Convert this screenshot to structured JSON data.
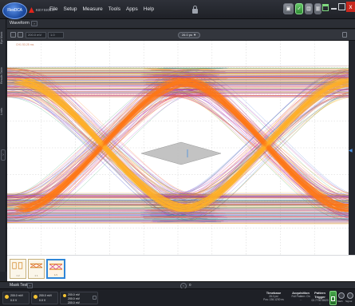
{
  "app": {
    "logo_label": "FlexDCA",
    "brand": "KEYSIGHT",
    "menus": [
      "File",
      "Setup",
      "Measure",
      "Tools",
      "Apps",
      "Help"
    ],
    "toolbar_glyphs": [
      "▣",
      "✓",
      "▤",
      "▥"
    ],
    "close_glyph": "x"
  },
  "left_dock": {
    "tabs": [
      "Eye Mask",
      "Results Table",
      "Limits"
    ],
    "arrow": "›"
  },
  "waveform": {
    "title": "Waveform",
    "menu_glyph": "›",
    "scale_boxes": [
      "200.0 mV",
      "1.0"
    ],
    "center_label": "26.0 ps ▼",
    "plot_label": "CH1  53.25 ms"
  },
  "thumbnails": [
    {
      "caption": "1  2",
      "selected": false
    },
    {
      "caption": "1  1",
      "selected": false
    },
    {
      "caption": "1/1",
      "selected": true
    }
  ],
  "mask_test": {
    "title": "Mask Test",
    "arrow": "›",
    "nav_glyph": "‹",
    "nav_number": "0"
  },
  "status": {
    "channels": [
      {
        "lines": [
          "200.0 mV/",
          "0.0 V"
        ]
      },
      {
        "lines": [
          "200.0 mV/",
          "0.0 V"
        ]
      },
      {
        "lines": [
          "200.0 mV",
          "200.0 mV",
          "200.0 mV"
        ]
      }
    ],
    "timebase": {
      "head": "Timebase",
      "lines": [
        "28.0 ps/",
        "Pos: 136.1230 ns"
      ]
    },
    "acquisition": {
      "head": "Acquisition",
      "lines": [
        "Full Pattern: On",
        "..."
      ]
    },
    "trigger": {
      "head": "Pattern Trigger",
      "lines": [
        "02.770578620",
        "..."
      ]
    },
    "round_buttons": [
      "Math",
      "Signal"
    ]
  },
  "colors": {
    "eye_band": "#ff7a18",
    "eye_outer": "#6b4dd1",
    "mask": "#b8b8b8",
    "grid": "#c8c8c8",
    "accent": "#2f86d8"
  }
}
